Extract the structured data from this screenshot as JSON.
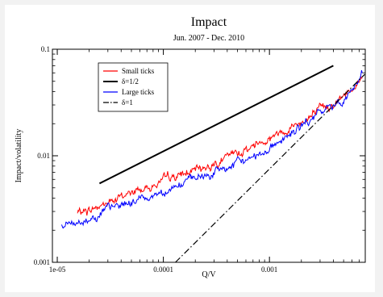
{
  "chart_data": {
    "type": "line",
    "title": "Impact",
    "subtitle": "Jun. 2007 - Dec. 2010",
    "xlabel": "Q/V",
    "ylabel": "Impact/volatility",
    "x_scale": "log",
    "y_scale": "log",
    "xlim": [
      9e-06,
      0.008
    ],
    "ylim": [
      0.001,
      0.1
    ],
    "x_ticks": [
      {
        "value": 1e-05,
        "label": "1e-05"
      },
      {
        "value": 0.0001,
        "label": "0.0001"
      },
      {
        "value": 0.001,
        "label": "0.001"
      }
    ],
    "y_ticks": [
      {
        "value": 0.001,
        "label": "0.001"
      },
      {
        "value": 0.01,
        "label": "0.01"
      },
      {
        "value": 0.1,
        "label": "0.1"
      }
    ],
    "grid": false,
    "legend_position": "top-left",
    "series": [
      {
        "name": "Small ticks",
        "color": "#ff0000",
        "style": "noisy",
        "x": [
          1.55e-05,
          2e-05,
          3e-05,
          5e-05,
          8e-05,
          0.00012,
          0.0002,
          0.0003,
          0.0005,
          0.0008,
          0.0012,
          0.002,
          0.003,
          0.005,
          0.0075
        ],
        "y": [
          0.0029,
          0.0031,
          0.0036,
          0.0045,
          0.0053,
          0.0062,
          0.0072,
          0.0085,
          0.0105,
          0.0135,
          0.0165,
          0.021,
          0.026,
          0.036,
          0.056
        ]
      },
      {
        "name": "δ=1/2",
        "color": "#000000",
        "style": "solid",
        "x": [
          2.5e-05,
          0.004
        ],
        "y": [
          0.0055,
          0.07
        ]
      },
      {
        "name": "Large ticks",
        "color": "#0000ff",
        "style": "noisy",
        "x": [
          1.1e-05,
          1.5e-05,
          2e-05,
          3e-05,
          5e-05,
          8e-05,
          0.00012,
          0.0002,
          0.0003,
          0.0005,
          0.0008,
          0.0012,
          0.002,
          0.003,
          0.005,
          0.0075
        ],
        "y": [
          0.0022,
          0.0023,
          0.0026,
          0.0031,
          0.0037,
          0.0043,
          0.0051,
          0.006,
          0.0069,
          0.0083,
          0.0105,
          0.0135,
          0.0185,
          0.025,
          0.034,
          0.055
        ]
      },
      {
        "name": "δ=1",
        "color": "#000000",
        "style": "dash-dot",
        "x": [
          0.00013,
          0.0079
        ],
        "y": [
          0.001,
          0.058
        ]
      }
    ]
  }
}
